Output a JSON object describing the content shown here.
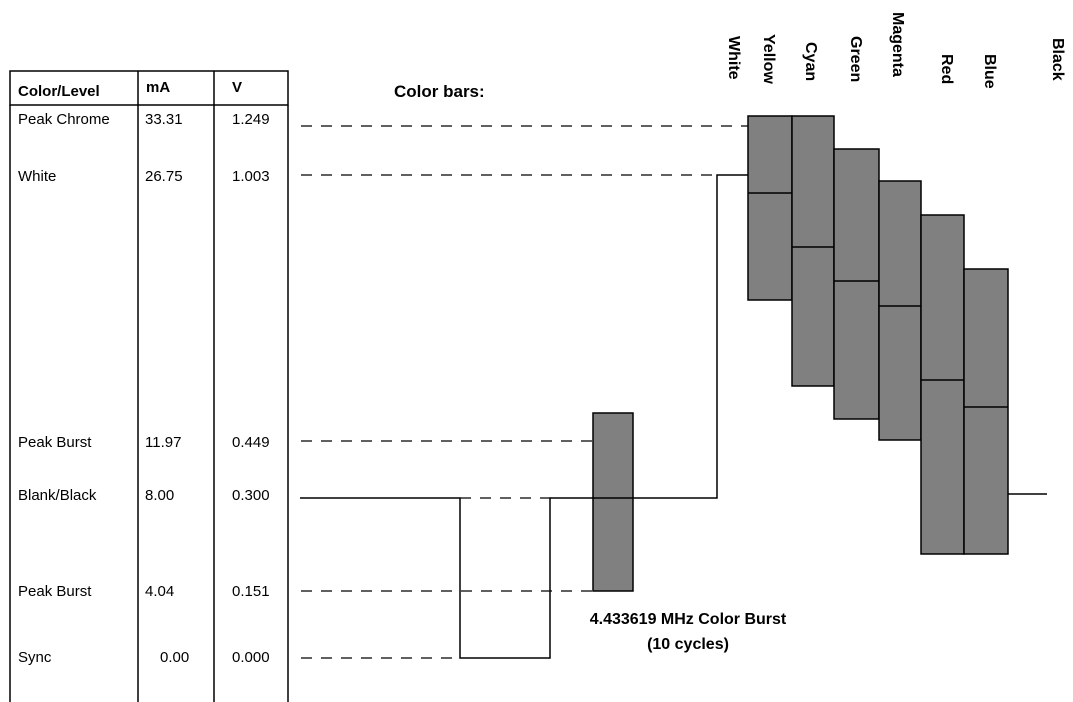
{
  "table": {
    "headers": {
      "color_level": "Color/Level",
      "ma": "mA",
      "v": "V"
    },
    "rows": [
      {
        "label": "Peak Chrome",
        "ma": "33.31",
        "v": "1.249"
      },
      {
        "label": "White",
        "ma": "26.75",
        "v": "1.003"
      },
      {
        "label": "Peak Burst",
        "ma": "11.97",
        "v": "0.449"
      },
      {
        "label": "Blank/Black",
        "ma": "8.00",
        "v": "0.300"
      },
      {
        "label": "Peak Burst",
        "ma": "4.04",
        "v": "0.151"
      },
      {
        "label": "Sync",
        "ma": "0.00",
        "v": "0.000"
      }
    ]
  },
  "diagram": {
    "color_bars_title": "Color bars:",
    "bar_names": [
      "White",
      "Yellow",
      "Cyan",
      "Green",
      "Magenta",
      "Red",
      "Blue",
      "Black"
    ],
    "burst_caption_line1": "4.433619 MHz Color Burst",
    "burst_caption_line2": "(10 cycles)",
    "colors": {
      "bar_fill": "#808080",
      "line": "#000000"
    }
  }
}
